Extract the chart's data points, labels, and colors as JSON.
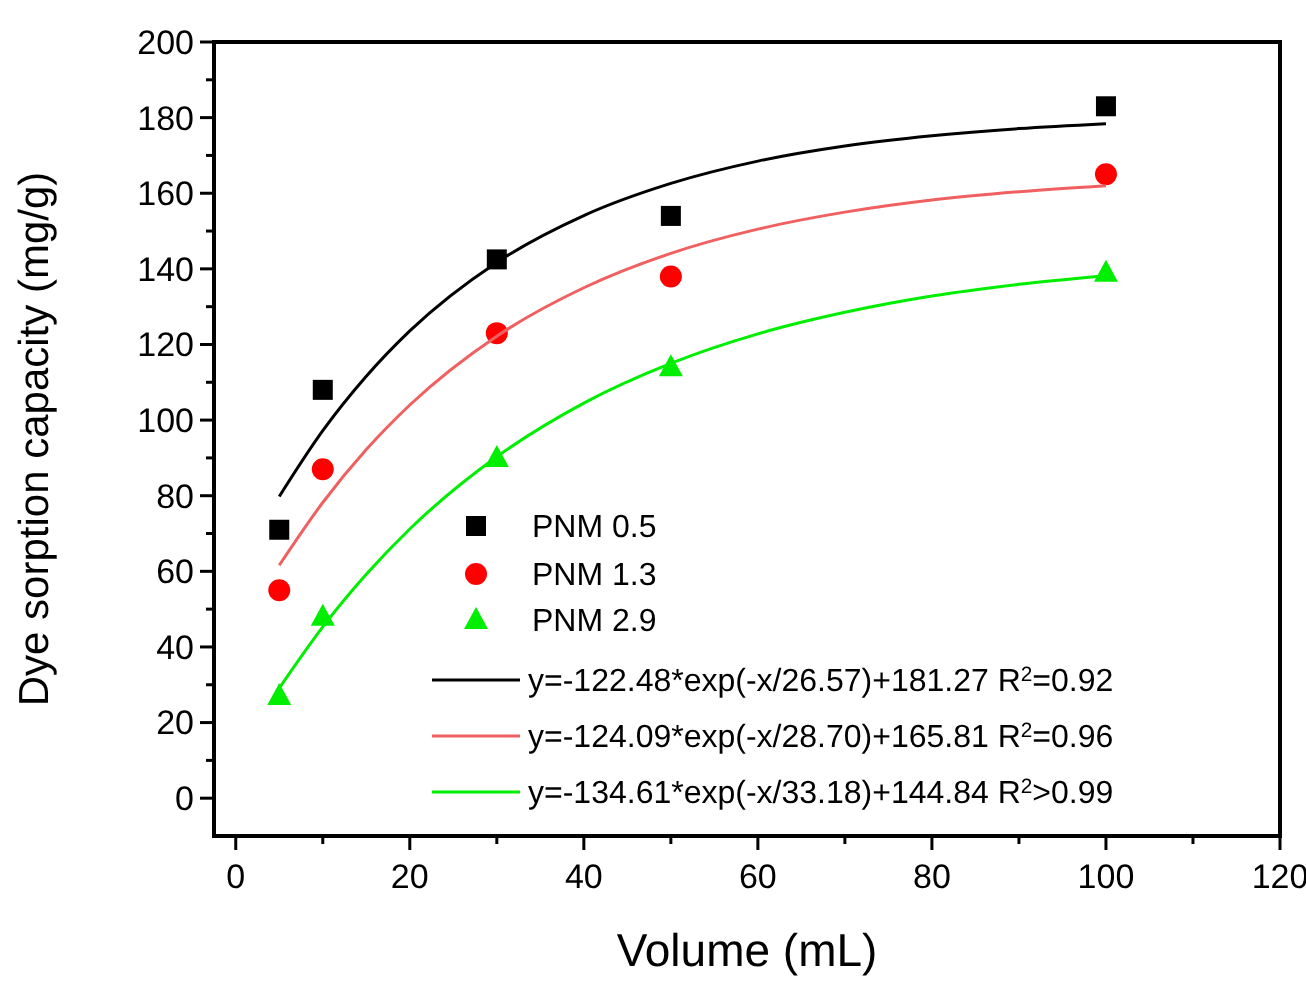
{
  "chart_data": {
    "type": "scatter",
    "xlabel": "Volume (mL)",
    "ylabel": "Dye sorption capacity (mg/g)",
    "xlim": [
      -2.5,
      120
    ],
    "ylim": [
      -10,
      200
    ],
    "xticks": [
      0,
      {
        "value": 10,
        "label": null
      },
      20,
      {
        "value": 30,
        "label": null
      },
      40,
      {
        "value": 50,
        "label": null
      },
      60,
      {
        "value": 70,
        "label": null
      },
      80,
      {
        "value": 90,
        "label": null
      },
      100,
      {
        "value": 110,
        "label": null
      },
      120
    ],
    "yticks": [
      0,
      {
        "value": 10,
        "label": null
      },
      20,
      {
        "value": 30,
        "label": null
      },
      40,
      {
        "value": 50,
        "label": null
      },
      60,
      {
        "value": 70,
        "label": null
      },
      80,
      {
        "value": 90,
        "label": null
      },
      100,
      {
        "value": 110,
        "label": null
      },
      120,
      {
        "value": 130,
        "label": null
      },
      140,
      {
        "value": 150,
        "label": null
      },
      160,
      {
        "value": 170,
        "label": null
      },
      180,
      {
        "value": 190,
        "label": null
      },
      200
    ],
    "grid": false,
    "legend": "bottom right",
    "series": [
      {
        "name": "PNM 0.5",
        "marker": "square",
        "color": "#000000",
        "x": [
          5,
          10,
          30,
          50,
          100
        ],
        "values": [
          71,
          108,
          142.5,
          154,
          183
        ]
      },
      {
        "name": "PNM 1.3",
        "marker": "circle",
        "color": "#ff0000",
        "x": [
          5,
          10,
          30,
          50,
          100
        ],
        "values": [
          55,
          87,
          123,
          138,
          165
        ]
      },
      {
        "name": "PNM 2.9",
        "marker": "triangle",
        "color": "#00ee00",
        "x": [
          5,
          10,
          30,
          50,
          100
        ],
        "values": [
          27,
          48,
          90,
          114,
          139
        ]
      },
      {
        "name": "y=-122.48*exp(-x/26.57)+181.27 R$^{2}$=0.92",
        "type": "line",
        "marker": "none",
        "color": "#000000",
        "x": [
          5,
          10,
          15,
          20,
          30,
          40,
          50,
          60,
          70,
          80,
          90,
          100
        ],
        "values": [
          79.8,
          97.2,
          111.6,
          123.6,
          141.7,
          154.1,
          162.6,
          168.5,
          172.5,
          175.2,
          177.1,
          178.4
        ]
      },
      {
        "name": "y=-124.09*exp(-x/28.70)+165.81 R$^{2}$=0.96",
        "type": "line",
        "marker": "none",
        "color": "#f06060",
        "x": [
          5,
          10,
          15,
          20,
          30,
          40,
          50,
          60,
          70,
          80,
          90,
          100
        ],
        "values": [
          61.6,
          78.2,
          92.2,
          104.0,
          122.2,
          135.0,
          144.1,
          150.5,
          155.0,
          158.2,
          160.4,
          162.0
        ]
      },
      {
        "name": "y=-134.61*exp(-x/33.18)+144.84 R$^{2}$>0.99",
        "type": "line",
        "marker": "none",
        "color": "#00ee00",
        "x": [
          5,
          10,
          15,
          20,
          30,
          40,
          50,
          60,
          70,
          80,
          90,
          100
        ],
        "values": [
          29.1,
          45.3,
          59.2,
          71.2,
          90.3,
          104.5,
          115.0,
          122.8,
          128.5,
          132.8,
          135.9,
          138.2
        ]
      }
    ]
  }
}
